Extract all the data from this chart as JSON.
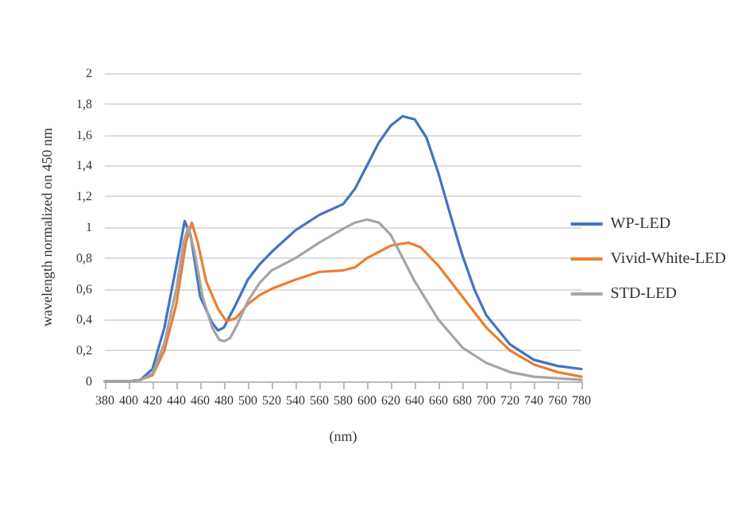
{
  "chart_data": {
    "type": "line",
    "xlabel": "(nm)",
    "ylabel": "wavelength normalized on 450 nm",
    "xlim": [
      380,
      780
    ],
    "xticks": [
      380,
      400,
      420,
      440,
      460,
      480,
      500,
      520,
      540,
      560,
      580,
      600,
      620,
      640,
      660,
      680,
      700,
      720,
      740,
      760,
      780
    ],
    "ylim": [
      0,
      2
    ],
    "yticks": [
      0,
      {
        "value": 0.2,
        "label": "0,2"
      },
      {
        "value": 0.4,
        "label": "0,4"
      },
      {
        "value": 0.6,
        "label": "0,6"
      },
      {
        "value": 0.8,
        "label": "0,8"
      },
      1,
      {
        "value": 1.2,
        "label": "1,2"
      },
      {
        "value": 1.4,
        "label": "1,4"
      },
      {
        "value": 1.6,
        "label": "1,6"
      },
      {
        "value": 1.8,
        "label": "1,8"
      },
      2
    ],
    "grid": "y",
    "legend": "right",
    "marker": "none",
    "line_style": "solid",
    "series": [
      {
        "name": "WP-LED",
        "color": "#4472c4",
        "x": [
          380,
          400,
          410,
          420,
          430,
          440,
          447,
          452,
          460,
          470,
          475,
          480,
          490,
          500,
          510,
          520,
          540,
          560,
          580,
          590,
          600,
          610,
          620,
          630,
          640,
          650,
          660,
          670,
          680,
          690,
          700,
          720,
          740,
          760,
          780
        ],
        "values": [
          0,
          0,
          0.01,
          0.08,
          0.35,
          0.75,
          1.04,
          0.95,
          0.55,
          0.38,
          0.33,
          0.35,
          0.5,
          0.66,
          0.76,
          0.84,
          0.98,
          1.08,
          1.15,
          1.25,
          1.4,
          1.55,
          1.66,
          1.72,
          1.7,
          1.58,
          1.35,
          1.08,
          0.82,
          0.6,
          0.43,
          0.24,
          0.14,
          0.1,
          0.08
        ]
      },
      {
        "name": "Vivid-White-LED",
        "color": "#ed7d31",
        "x": [
          380,
          400,
          410,
          420,
          430,
          440,
          448,
          453,
          458,
          465,
          475,
          482,
          490,
          500,
          510,
          520,
          540,
          560,
          580,
          590,
          600,
          620,
          635,
          645,
          660,
          680,
          700,
          720,
          740,
          760,
          780
        ],
        "values": [
          0,
          0,
          0.01,
          0.04,
          0.2,
          0.5,
          0.9,
          1.03,
          0.9,
          0.65,
          0.47,
          0.39,
          0.41,
          0.5,
          0.56,
          0.6,
          0.66,
          0.71,
          0.72,
          0.74,
          0.8,
          0.88,
          0.9,
          0.87,
          0.75,
          0.55,
          0.35,
          0.2,
          0.11,
          0.06,
          0.03
        ]
      },
      {
        "name": "STD-LED",
        "color": "#a5a5a5",
        "x": [
          380,
          400,
          410,
          420,
          430,
          440,
          446,
          450,
          455,
          462,
          470,
          476,
          480,
          485,
          490,
          500,
          510,
          520,
          540,
          560,
          580,
          590,
          600,
          610,
          620,
          630,
          640,
          660,
          680,
          700,
          720,
          740,
          760,
          780
        ],
        "values": [
          0,
          0,
          0.01,
          0.05,
          0.25,
          0.6,
          0.9,
          1.0,
          0.85,
          0.55,
          0.35,
          0.27,
          0.26,
          0.28,
          0.35,
          0.52,
          0.64,
          0.72,
          0.8,
          0.9,
          0.99,
          1.03,
          1.05,
          1.03,
          0.95,
          0.8,
          0.65,
          0.4,
          0.22,
          0.12,
          0.06,
          0.03,
          0.02,
          0.01
        ]
      }
    ]
  }
}
